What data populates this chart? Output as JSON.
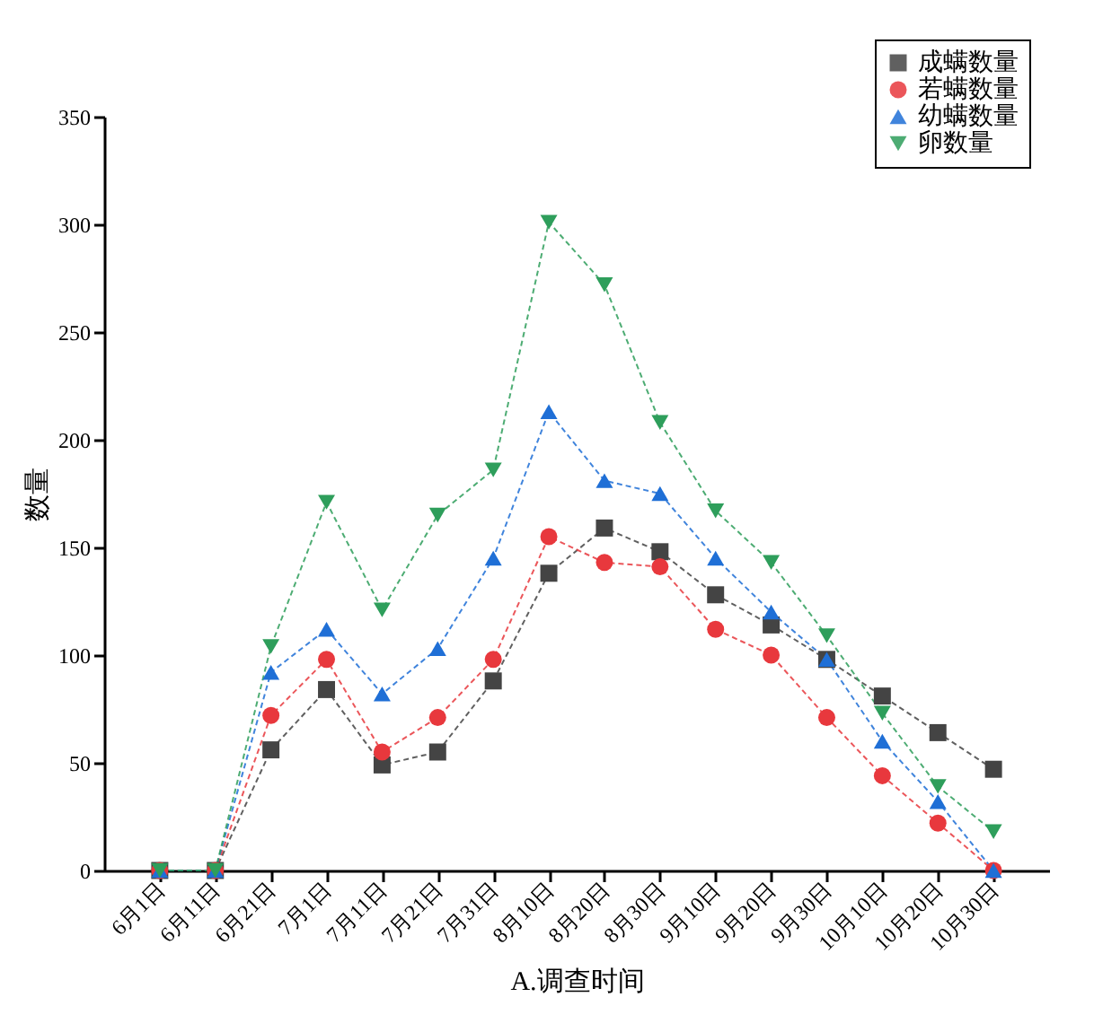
{
  "chart_data": {
    "type": "line",
    "xlabel": "A.调查时间",
    "ylabel": "数量",
    "categories": [
      "6月1日",
      "6月11日",
      "6月21日",
      "7月1日",
      "7月11日",
      "7月21日",
      "7月31日",
      "8月10日",
      "8月20日",
      "8月30日",
      "9月10日",
      "9月20日",
      "9月30日",
      "10月10日",
      "10月20日",
      "10月30日"
    ],
    "series": [
      {
        "name": "成螨数量",
        "color": "#444444",
        "marker": "square",
        "values": [
          0,
          0,
          56,
          84,
          49,
          55,
          88,
          138,
          159,
          148,
          128,
          114,
          98,
          81,
          64,
          47
        ]
      },
      {
        "name": "若螨数量",
        "color": "#e8383d",
        "marker": "circle",
        "values": [
          0,
          0,
          72,
          98,
          55,
          71,
          98,
          155,
          143,
          141,
          112,
          100,
          71,
          44,
          22,
          0
        ]
      },
      {
        "name": "幼螨数量",
        "color": "#1f6fd6",
        "marker": "triangle",
        "values": [
          0,
          0,
          92,
          112,
          82,
          103,
          145,
          213,
          181,
          175,
          145,
          120,
          98,
          60,
          32,
          0
        ]
      },
      {
        "name": "卵数量",
        "color": "#2e9e5b",
        "marker": "triangle-down",
        "values": [
          0,
          0,
          104,
          171,
          121,
          165,
          186,
          301,
          272,
          208,
          167,
          143,
          109,
          73,
          39,
          18
        ]
      }
    ],
    "ylim": [
      0,
      350
    ],
    "yticks": [
      0,
      50,
      100,
      150,
      200,
      250,
      300,
      350
    ],
    "grid": false,
    "legend": "top right",
    "line_style": "dashed"
  }
}
